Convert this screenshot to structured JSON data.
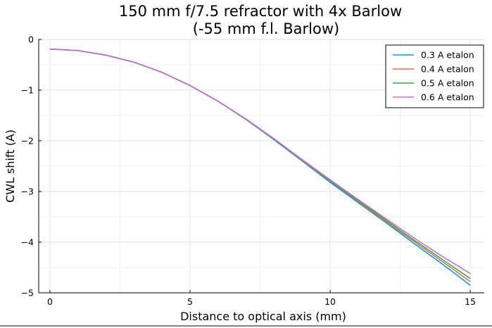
{
  "chart_data": {
    "type": "line",
    "title": "150 mm f/7.5 refractor with 4x Barlow",
    "subtitle": "(-55 mm f.l. Barlow)",
    "xlabel": "Distance to optical axis (mm)",
    "ylabel": "CWL shift (A)",
    "xlim": [
      -0.4,
      15.5
    ],
    "ylim": [
      -5,
      0
    ],
    "xticks": [
      0,
      5,
      10,
      15
    ],
    "yticks": [
      0,
      -1,
      -2,
      -3,
      -4,
      -5
    ],
    "xtick_labels": [
      "0",
      "5",
      "10",
      "15"
    ],
    "ytick_labels": [
      "0",
      "−1",
      "−2",
      "−3",
      "−4",
      "−5"
    ],
    "grid": true,
    "legend_position": "top-right",
    "x": [
      0,
      1,
      2,
      3,
      4,
      5,
      6,
      7,
      8,
      9,
      10,
      11,
      12,
      13,
      14,
      15
    ],
    "series": [
      {
        "name": "0.3 A etalon",
        "color": "#009AFA",
        "values": [
          -0.19,
          -0.22,
          -0.31,
          -0.45,
          -0.65,
          -0.91,
          -1.22,
          -1.58,
          -1.98,
          -2.4,
          -2.82,
          -3.22,
          -3.62,
          -4.03,
          -4.43,
          -4.85
        ]
      },
      {
        "name": "0.4 A etalon",
        "color": "#E36F47",
        "values": [
          -0.19,
          -0.22,
          -0.31,
          -0.45,
          -0.65,
          -0.91,
          -1.22,
          -1.58,
          -1.97,
          -2.39,
          -2.8,
          -3.2,
          -3.6,
          -3.99,
          -4.38,
          -4.78
        ]
      },
      {
        "name": "0.5 A etalon",
        "color": "#3EA44E",
        "values": [
          -0.19,
          -0.22,
          -0.31,
          -0.45,
          -0.65,
          -0.91,
          -1.22,
          -1.58,
          -1.97,
          -2.38,
          -2.79,
          -3.18,
          -3.57,
          -3.96,
          -4.34,
          -4.72
        ]
      },
      {
        "name": "0.6 A etalon",
        "color": "#C271D2",
        "values": [
          -0.19,
          -0.22,
          -0.31,
          -0.45,
          -0.65,
          -0.91,
          -1.22,
          -1.57,
          -1.96,
          -2.37,
          -2.77,
          -3.16,
          -3.54,
          -3.92,
          -4.28,
          -4.62
        ]
      }
    ]
  }
}
